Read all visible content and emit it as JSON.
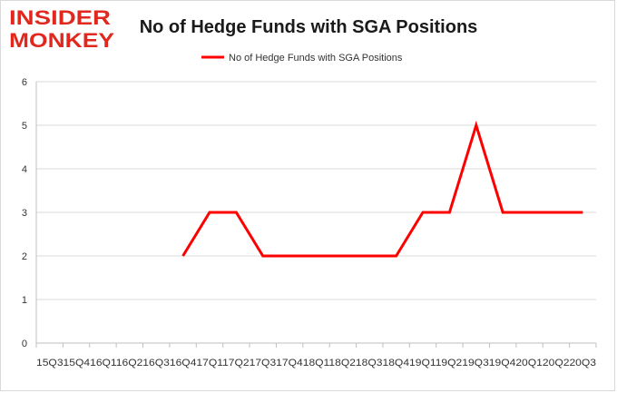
{
  "logo": {
    "line1": "INSIDER",
    "line2": "MONKEY",
    "color": "#e0281f"
  },
  "chart_data": {
    "type": "line",
    "title": "No of Hedge Funds with SGA Positions",
    "xlabel": "",
    "ylabel": "",
    "categories": [
      "Q3 2015",
      "Q4 2015",
      "Q1 2016",
      "Q2 2016",
      "Q3 2016",
      "Q4 2016",
      "Q1 2017",
      "Q2 2017",
      "Q3 2017",
      "Q4 2017",
      "Q1 2018",
      "Q2 2018",
      "Q3 2018",
      "Q4 2018",
      "Q1 2019",
      "Q2 2019",
      "Q3 2019",
      "Q4 2019",
      "Q1 2020",
      "Q2 2020",
      "Q3 2020"
    ],
    "x_axis_text": "15Q315Q416Q116Q216Q316Q417Q117Q217Q317Q418Q118Q218Q318Q419Q119Q219Q319Q420Q120Q220Q3",
    "series": [
      {
        "name": "No of Hedge Funds with SGA Positions",
        "color": "#ff0000",
        "values": [
          null,
          null,
          null,
          null,
          null,
          2,
          3,
          3,
          2,
          2,
          2,
          2,
          2,
          2,
          3,
          3,
          5,
          3,
          3,
          3,
          3
        ]
      }
    ],
    "ylim": [
      0,
      6
    ],
    "yticks": [
      0,
      1,
      2,
      3,
      4,
      5,
      6
    ],
    "grid": true,
    "legend": "top-center"
  }
}
